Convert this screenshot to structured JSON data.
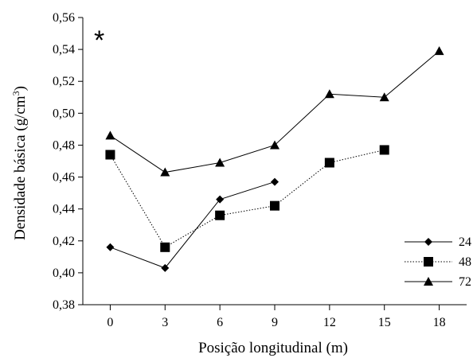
{
  "chart_data": {
    "type": "line",
    "annotation": "*",
    "xlabel": "Posição longitudinal (m)",
    "ylabel_main": "Densidade básica (g/cm",
    "ylabel_sup": "3",
    "ylabel_close": ")",
    "xlim": [
      -1.5,
      19.5
    ],
    "ylim": [
      0.38,
      0.56
    ],
    "x_ticks": [
      0,
      3,
      6,
      9,
      12,
      15,
      18
    ],
    "x_tick_labels": [
      "0",
      "3",
      "6",
      "9",
      "12",
      "15",
      "18"
    ],
    "y_ticks": [
      0.38,
      0.4,
      0.42,
      0.44,
      0.46,
      0.48,
      0.5,
      0.52,
      0.54,
      0.56
    ],
    "y_tick_labels": [
      "0,38",
      "0,40",
      "0,42",
      "0,44",
      "0,46",
      "0,48",
      "0,50",
      "0,52",
      "0,54",
      "0,56"
    ],
    "grid": false,
    "legend_position": "bottom-right",
    "series": [
      {
        "name": "24",
        "marker": "diamond",
        "line": "solid",
        "x": [
          0,
          3,
          6,
          9
        ],
        "values": [
          0.416,
          0.403,
          0.446,
          0.457
        ]
      },
      {
        "name": "48",
        "marker": "square",
        "line": "dotted",
        "x": [
          0,
          3,
          6,
          9,
          12,
          15
        ],
        "values": [
          0.474,
          0.416,
          0.436,
          0.442,
          0.469,
          0.477
        ]
      },
      {
        "name": "72",
        "marker": "triangle",
        "line": "solid",
        "x": [
          0,
          3,
          6,
          9,
          12,
          15,
          18
        ],
        "values": [
          0.486,
          0.463,
          0.469,
          0.48,
          0.512,
          0.51,
          0.539
        ]
      }
    ],
    "colors": {
      "line": "#000000",
      "marker": "#000000",
      "background": "#ffffff"
    }
  }
}
